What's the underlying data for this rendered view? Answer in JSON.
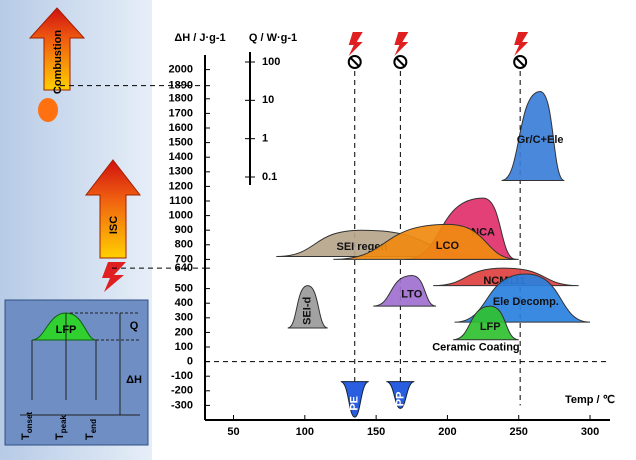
{
  "chart_data": {
    "type": "peaks",
    "y_label": "ΔH / J·g-1",
    "q_label": "Q / W·g-1",
    "x_label": "Temp / ℃",
    "ylim": [
      -400,
      2100
    ],
    "yticks": [
      -300,
      -200,
      -100,
      0,
      100,
      200,
      300,
      400,
      500,
      640,
      700,
      800,
      900,
      1000,
      1100,
      1200,
      1300,
      1400,
      1500,
      1600,
      1700,
      1800,
      1890,
      2000
    ],
    "xlim": [
      30,
      314
    ],
    "xticks": [
      50,
      100,
      150,
      200,
      250,
      300
    ],
    "qlim": [
      0.1,
      100
    ],
    "qticks": [
      100,
      10,
      1,
      0.1
    ],
    "peaks": [
      {
        "label": "SEI regen",
        "color": "#b5a58a",
        "onset": 80,
        "peak": 140,
        "end": 225,
        "base": 720,
        "top": 900
      },
      {
        "label": "NCA",
        "color": "#e0306a",
        "onset": 170,
        "peak": 225,
        "end": 248,
        "base": 700,
        "top": 1120
      },
      {
        "label": "LCO",
        "color": "#f08a10",
        "onset": 120,
        "peak": 200,
        "end": 250,
        "base": 700,
        "top": 940
      },
      {
        "label": "SEI-d",
        "color": "#9a9a9a",
        "onset": 88,
        "peak": 102,
        "end": 116,
        "base": 230,
        "top": 520
      },
      {
        "label": "LTO",
        "color": "#a070d0",
        "onset": 148,
        "peak": 175,
        "end": 192,
        "base": 380,
        "top": 590
      },
      {
        "label": "NCM111",
        "color": "#e04040",
        "onset": 190,
        "peak": 240,
        "end": 292,
        "base": 520,
        "top": 640
      },
      {
        "label": "Ele Decomp.",
        "color": "#2a80e0",
        "onset": 205,
        "peak": 255,
        "end": 300,
        "base": 270,
        "top": 600
      },
      {
        "label": "LFP",
        "color": "#30c030",
        "onset": 204,
        "peak": 230,
        "end": 250,
        "base": 150,
        "top": 380
      },
      {
        "label": "Gr/C+Ele",
        "color": "#3a7ed8",
        "onset": 238,
        "peak": 265,
        "end": 282,
        "base": 1240,
        "top": 1850
      }
    ],
    "separators": [
      {
        "label": "PE",
        "temp": 135,
        "depth": -380
      },
      {
        "label": "PP",
        "temp": 167,
        "depth": -320
      }
    ],
    "annotation": "Ceramic Coating",
    "hlines": [
      0,
      1890,
      640
    ],
    "vlines": [
      135,
      167,
      251
    ],
    "left_panel": {
      "combustion": "Combustion",
      "isc": "ISC",
      "inset": {
        "peak": "LFP",
        "q": "Q",
        "dh": "ΔH",
        "t_labels": [
          {
            "main": "T",
            "sub": "onset"
          },
          {
            "main": "T",
            "sub": "peak"
          },
          {
            "main": "T",
            "sub": "end"
          }
        ]
      }
    }
  }
}
